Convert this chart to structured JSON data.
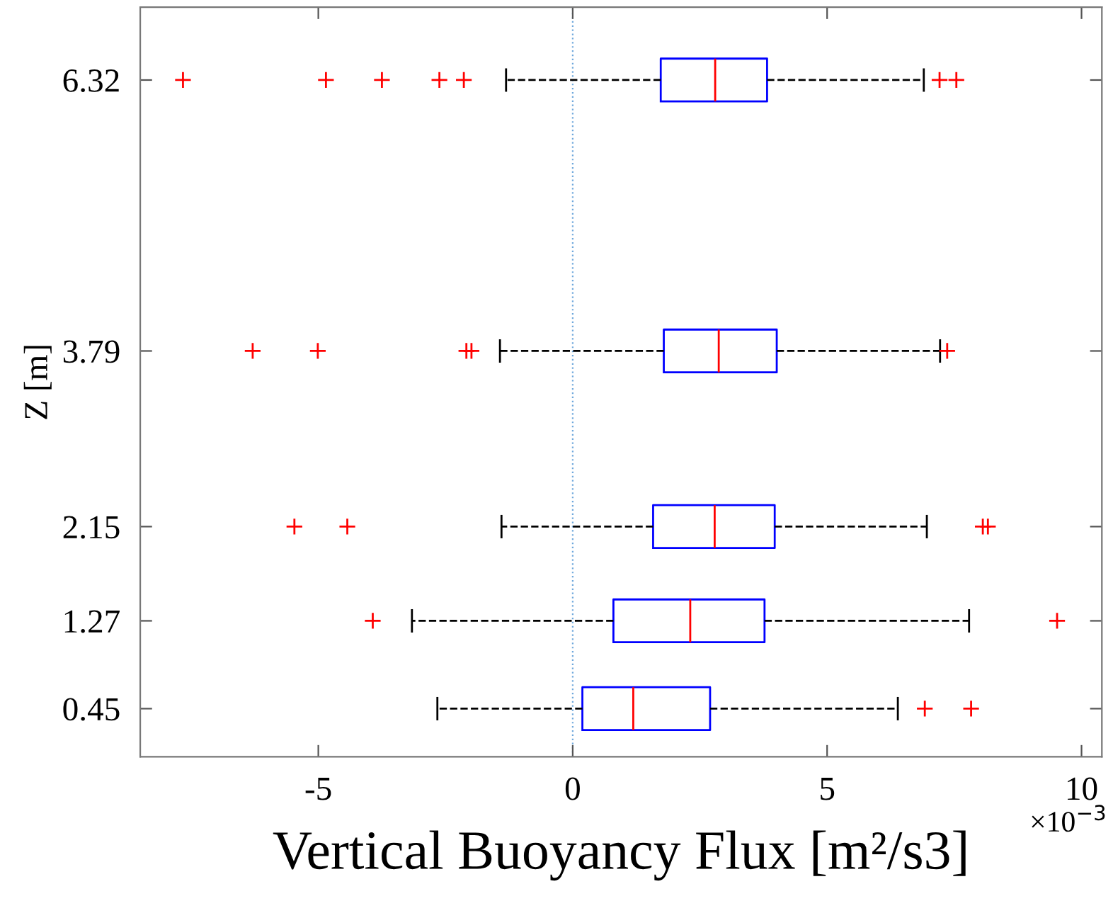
{
  "chart_data": {
    "type": "box",
    "orientation": "horizontal",
    "xlabel": "Vertical Buoyancy Flux [m²/s3]",
    "ylabel": "Z [m]",
    "annotations": [
      "×10$^{−3}$"
    ],
    "x": [
      0.45,
      1.27,
      2.15,
      3.79,
      6.32
    ],
    "series": [
      {
        "color": "#0000ff",
        "boxes": [
          {
            "low": -2.66,
            "q1": 0.19,
            "median": 1.19,
            "q3": 2.7,
            "high": 6.39,
            "outliers": [
              6.92,
              7.83
            ]
          },
          {
            "low": -3.16,
            "q1": 0.8,
            "median": 2.31,
            "q3": 3.77,
            "high": 7.79,
            "outliers": [
              -3.93,
              9.52
            ]
          },
          {
            "low": -1.4,
            "q1": 1.58,
            "median": 2.79,
            "q3": 3.97,
            "high": 6.96,
            "outliers": [
              -5.47,
              -4.43,
              8.06,
              8.16
            ]
          },
          {
            "low": -1.43,
            "q1": 1.79,
            "median": 2.87,
            "q3": 4.01,
            "high": 7.22,
            "outliers": [
              -6.29,
              -5.01,
              -2.09,
              -1.99,
              7.36
            ]
          },
          {
            "low": -1.31,
            "q1": 1.73,
            "median": 2.8,
            "q3": 3.82,
            "high": 6.9,
            "outliers": [
              -7.66,
              -4.85,
              -3.75,
              -2.62,
              -2.14,
              7.21,
              7.54
            ]
          }
        ]
      }
    ],
    "xlim": [
      -8.5,
      10.4
    ],
    "xticks": [
      -5,
      0,
      5,
      10
    ],
    "ylim": [
      0,
      7
    ],
    "yticks": [
      0.45,
      1.27,
      2.15,
      3.79,
      6.32
    ],
    "ref_lines": [
      {
        "axis": "x",
        "value": 0,
        "color": "#6fa8dc",
        "line_style": "dotted"
      }
    ],
    "marker": "cross",
    "line_style": "dashed",
    "grid": false
  }
}
